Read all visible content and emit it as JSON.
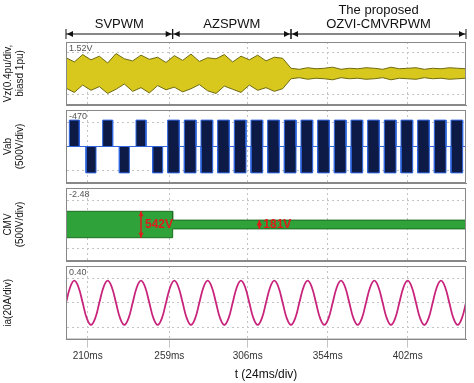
{
  "chart_data": [
    {
      "type": "line",
      "sections": [
        {
          "label": "SVPWM",
          "from": 197,
          "to": 261
        },
        {
          "label": "AZSPWM",
          "from": 261,
          "to": 332
        },
        {
          "label": [
            "The proposed",
            "OZVI-CMVRPWM"
          ],
          "from": 332,
          "to": 437
        }
      ],
      "ylabel": [
        "Vz(0.4pu/div,",
        "biasd 1pu)"
      ],
      "readout": "1.52V",
      "color": "#d8c81e",
      "x": [
        197,
        202,
        207,
        212,
        217,
        222,
        227,
        232,
        237,
        242,
        247,
        252,
        257,
        262,
        267,
        272,
        277,
        282,
        287,
        292,
        297,
        302,
        307,
        312,
        317,
        322,
        327,
        332,
        337,
        342,
        347,
        352,
        357,
        362,
        367,
        372,
        377,
        382,
        387,
        392,
        397,
        402,
        407,
        412,
        417,
        422,
        427,
        432,
        437
      ],
      "envelope": {
        "upper": [
          1.3,
          1.22,
          1.36,
          1.26,
          1.33,
          1.2,
          1.38,
          1.28,
          1.24,
          1.35,
          1.27,
          1.31,
          1.21,
          1.34,
          1.25,
          1.37,
          1.23,
          1.3,
          1.28,
          1.36,
          1.22,
          1.33,
          1.26,
          1.35,
          1.24,
          1.31,
          1.29,
          1.1,
          1.08,
          1.11,
          1.09,
          1.1,
          1.12,
          1.08,
          1.1,
          1.09,
          1.11,
          1.1,
          1.08,
          1.12,
          1.09,
          1.1,
          1.11,
          1.08,
          1.1,
          1.09,
          1.11,
          1.1,
          1.09
        ],
        "lower": [
          0.72,
          0.64,
          0.78,
          0.68,
          0.75,
          0.62,
          0.7,
          0.8,
          0.66,
          0.73,
          0.63,
          0.77,
          0.69,
          0.74,
          0.65,
          0.71,
          0.79,
          0.67,
          0.62,
          0.76,
          0.7,
          0.64,
          0.78,
          0.68,
          0.73,
          0.66,
          0.71,
          0.9,
          0.92,
          0.89,
          0.91,
          0.9,
          0.88,
          0.92,
          0.9,
          0.91,
          0.89,
          0.9,
          0.92,
          0.88,
          0.91,
          0.9,
          0.89,
          0.92,
          0.9,
          0.91,
          0.89,
          0.9,
          0.91
        ]
      },
      "xlim": [
        197,
        437
      ],
      "xticks": [
        210,
        259,
        306,
        354,
        402
      ],
      "ylim": [
        0.4,
        1.6
      ],
      "yticks": [
        0.6,
        1.0,
        1.4
      ],
      "grid": true,
      "tick_labels": false
    },
    {
      "type": "line",
      "ylabel": [
        "Vab",
        "(500V/div)"
      ],
      "readout": "-470",
      "color": "#0d1a46",
      "x": [
        197,
        199,
        199,
        205,
        205,
        209,
        209,
        215,
        215,
        219,
        219,
        225,
        225,
        229,
        229,
        235,
        235,
        239,
        239,
        245,
        245,
        249,
        249,
        255,
        255,
        258,
        258,
        265,
        265,
        268,
        268,
        275,
        275,
        278,
        278,
        285,
        285,
        288,
        288,
        295,
        295,
        298,
        298,
        305,
        305,
        308,
        308,
        315,
        315,
        318,
        318,
        325,
        325,
        328,
        328,
        335,
        335,
        338,
        338,
        345,
        345,
        348,
        348,
        355,
        355,
        358,
        358,
        365,
        365,
        368,
        368,
        375,
        375,
        378,
        378,
        385,
        385,
        388,
        388,
        395,
        395,
        398,
        398,
        405,
        405,
        408,
        408,
        415,
        415,
        418,
        418,
        425,
        425,
        428,
        428,
        435,
        435,
        437
      ],
      "envelope": {
        "upper": [
          0,
          0,
          542,
          542,
          0,
          0,
          0,
          0,
          0,
          0,
          542,
          542,
          0,
          0,
          0,
          0,
          0,
          0,
          542,
          542,
          0,
          0,
          0,
          0,
          0,
          0,
          542,
          542,
          0,
          0,
          542,
          542,
          0,
          0,
          542,
          542,
          0,
          0,
          542,
          542,
          0,
          0,
          542,
          542,
          0,
          0,
          542,
          542,
          0,
          0,
          542,
          542,
          0,
          0,
          542,
          542,
          0,
          0,
          542,
          542,
          0,
          0,
          542,
          542,
          0,
          0,
          542,
          542,
          0,
          0,
          542,
          542,
          0,
          0,
          542,
          542,
          0,
          0,
          542,
          542,
          0,
          0,
          542,
          542,
          0,
          0,
          542,
          542,
          0,
          0,
          542,
          542,
          0,
          0,
          542,
          542,
          0,
          0
        ],
        "lower": [
          0,
          0,
          0,
          0,
          0,
          0,
          -542,
          -542,
          0,
          0,
          0,
          0,
          0,
          0,
          -542,
          -542,
          0,
          0,
          0,
          0,
          0,
          0,
          -542,
          -542,
          0,
          0,
          -542,
          -542,
          0,
          0,
          -542,
          -542,
          0,
          0,
          -542,
          -542,
          0,
          0,
          -542,
          -542,
          0,
          0,
          -542,
          -542,
          0,
          0,
          -542,
          -542,
          0,
          0,
          -542,
          -542,
          0,
          0,
          -542,
          -542,
          0,
          0,
          -542,
          -542,
          0,
          0,
          -542,
          -542,
          0,
          0,
          -542,
          -542,
          0,
          0,
          -542,
          -542,
          0,
          0,
          -542,
          -542,
          0,
          0,
          -542,
          -542,
          0,
          0,
          -542,
          -542,
          0,
          0,
          -542,
          -542,
          0,
          0,
          -542,
          -542,
          0,
          0,
          -542,
          -542,
          0,
          0
        ]
      },
      "xlim": [
        197,
        437
      ],
      "xticks": [
        210,
        259,
        306,
        354,
        402
      ],
      "ylim": [
        -750,
        750
      ],
      "yticks": [
        -500,
        0,
        500
      ],
      "grid": true,
      "tick_labels": false
    },
    {
      "type": "line",
      "ylabel": [
        "CMV",
        "(500V/div)"
      ],
      "readout": "-2.48",
      "color": "#2fa33a",
      "x": [
        197,
        261,
        261,
        437
      ],
      "envelope": {
        "upper": [
          271,
          271,
          90.5,
          90.5
        ],
        "lower": [
          -271,
          -271,
          -90.5,
          -90.5
        ]
      },
      "annotations": [
        {
          "text": "542V",
          "x": 242,
          "from": -271,
          "to": 271
        },
        {
          "text": "181V",
          "x": 313,
          "from": -90.5,
          "to": 90.5
        }
      ],
      "xlim": [
        197,
        437
      ],
      "xticks": [
        210,
        259,
        306,
        354,
        402
      ],
      "ylim": [
        -750,
        750
      ],
      "yticks": [
        -500,
        0,
        500
      ],
      "grid": true,
      "tick_labels": false
    },
    {
      "type": "line",
      "ylabel": [
        "ia(20A/div)"
      ],
      "readout": "0.40",
      "xlabel": "t (24ms/div)",
      "color": "#c8247c",
      "x": [
        197,
        199.5,
        202,
        204.5,
        207,
        209.5,
        212,
        214.5,
        217,
        219.5,
        222,
        224.5,
        227,
        229.5,
        232,
        234.5,
        237,
        239.5,
        242,
        244.5,
        247,
        249.5,
        252,
        254.5,
        257,
        259.5,
        262,
        264.5,
        267,
        269.5,
        272,
        274.5,
        277,
        279.5,
        282,
        284.5,
        287,
        289.5,
        292,
        294.5,
        297,
        299.5,
        302,
        304.5,
        307,
        309.5,
        312,
        314.5,
        317,
        319.5,
        322,
        324.5,
        327,
        329.5,
        332,
        334.5,
        337,
        339.5,
        342,
        344.5,
        347,
        349.5,
        352,
        354.5,
        357,
        359.5,
        362,
        364.5,
        367,
        369.5,
        372,
        374.5,
        377,
        379.5,
        382,
        384.5,
        387,
        389.5,
        392,
        394.5,
        397,
        399.5,
        402,
        404.5,
        407,
        409.5,
        412,
        414.5,
        417,
        419.5,
        422,
        424.5,
        427,
        429.5,
        432,
        434.5,
        437
      ],
      "values": [
        0,
        12.7,
        18,
        12.7,
        0,
        -12.7,
        -18,
        -12.7,
        0,
        12.7,
        18,
        12.7,
        0,
        -12.7,
        -18,
        -12.7,
        0,
        12.7,
        18,
        12.7,
        0,
        -12.7,
        -18,
        -12.7,
        0,
        12.7,
        18,
        12.7,
        0,
        -12.7,
        -18,
        -12.7,
        0,
        12.7,
        18,
        12.7,
        0,
        -12.7,
        -18,
        -12.7,
        0,
        12.7,
        18,
        12.7,
        0,
        -12.7,
        -18,
        -12.7,
        0,
        12.7,
        18,
        12.7,
        0,
        -12.7,
        -18,
        -12.7,
        0,
        12.7,
        18,
        12.7,
        0,
        -12.7,
        -18,
        -12.7,
        0,
        12.7,
        18,
        12.7,
        0,
        -12.7,
        -18,
        -12.7,
        0,
        12.7,
        18,
        12.7,
        0,
        -12.7,
        -18,
        -12.7,
        0,
        12.7,
        18,
        12.7,
        0,
        -12.7,
        -18,
        -12.7,
        0,
        12.7,
        18,
        12.7,
        0,
        -12.7,
        -18,
        -12.7,
        0
      ],
      "xlim": [
        197,
        437
      ],
      "xticks": [
        {
          "value": 210,
          "label": "210ms"
        },
        {
          "value": 259,
          "label": "259ms"
        },
        {
          "value": 306,
          "label": "306ms"
        },
        {
          "value": 354,
          "label": "354ms"
        },
        {
          "value": 402,
          "label": "402ms"
        }
      ],
      "ylim": [
        -30,
        30
      ],
      "yticks": [
        -20,
        0,
        20
      ],
      "grid": true,
      "tick_labels": "x"
    }
  ]
}
